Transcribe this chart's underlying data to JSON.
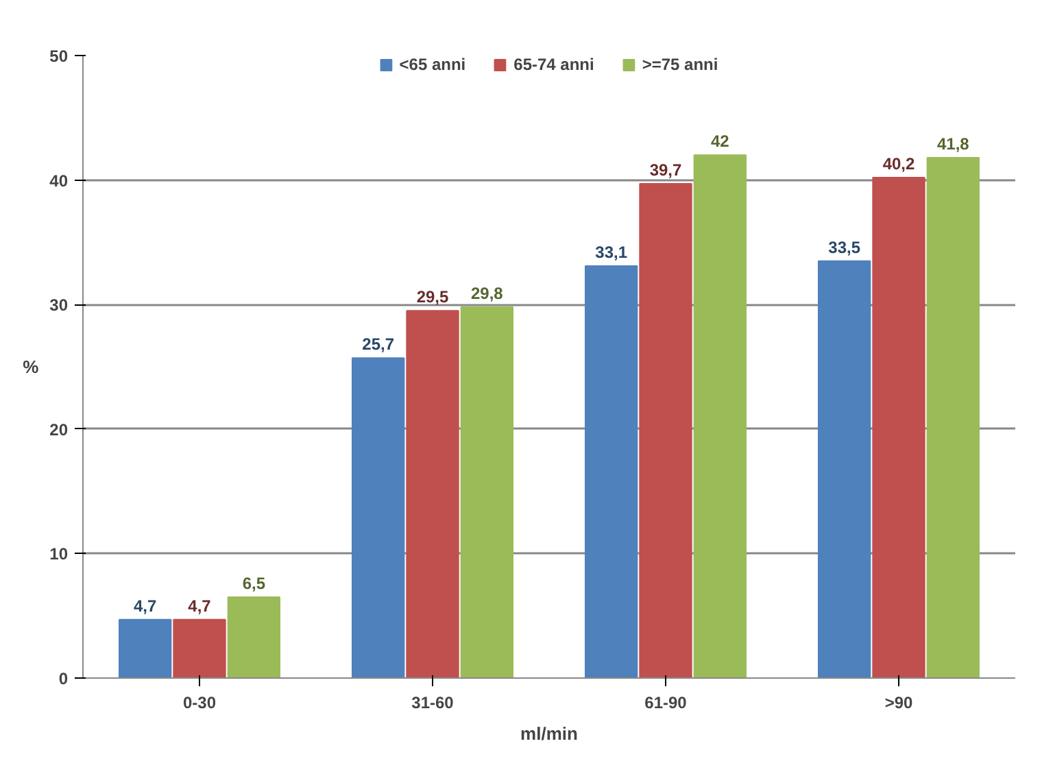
{
  "chart_data": {
    "type": "bar",
    "xlabel": "ml/min",
    "ylabel": "%",
    "categories": [
      "0-30",
      "31-60",
      "61-90",
      ">90"
    ],
    "series": [
      {
        "name": "<65 anni",
        "color": "#4f81bd",
        "values": [
          4.7,
          25.7,
          33.1,
          33.5
        ],
        "value_labels": [
          "4,7",
          "25,7",
          "33,1",
          "33,5"
        ]
      },
      {
        "name": "65-74 anni",
        "color": "#c0504d",
        "values": [
          4.7,
          29.5,
          39.7,
          40.2
        ],
        "value_labels": [
          "4,7",
          "29,5",
          "39,7",
          "40,2"
        ]
      },
      {
        "name": ">=75 anni",
        "color": "#9bbb59",
        "values": [
          6.5,
          29.8,
          42,
          41.8
        ],
        "value_labels": [
          "6,5",
          "29,8",
          "42",
          "41,8"
        ]
      }
    ],
    "ylim": [
      0,
      50
    ],
    "yticks": [
      0,
      10,
      20,
      30,
      40,
      50
    ],
    "grid": "y",
    "legend": "top"
  }
}
